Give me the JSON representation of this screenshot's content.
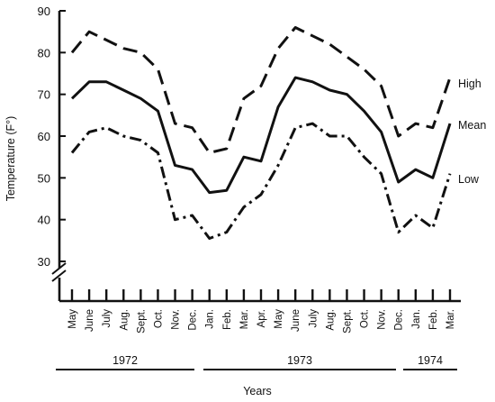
{
  "chart_data": {
    "type": "line",
    "ylabel": "Temperature (F°)",
    "xlabel": "Years",
    "ylim": [
      28,
      90
    ],
    "yticks": [
      30,
      40,
      50,
      60,
      70,
      80,
      90
    ],
    "categories": [
      "May",
      "June",
      "July",
      "Aug.",
      "Sept.",
      "Oct.",
      "Nov.",
      "Dec.",
      "Jan.",
      "Feb.",
      "Mar.",
      "Apr.",
      "May",
      "June",
      "July",
      "Aug.",
      "Sept.",
      "Oct.",
      "Nov.",
      "Dec.",
      "Jan.",
      "Feb.",
      "Mar."
    ],
    "year_groups": [
      {
        "label": "1972",
        "start": 0,
        "end": 7
      },
      {
        "label": "1973",
        "start": 8,
        "end": 19
      },
      {
        "label": "1974",
        "start": 20,
        "end": 22
      }
    ],
    "series": [
      {
        "name": "High",
        "style": "dashed",
        "values": [
          80,
          85,
          83,
          81,
          80,
          76,
          63,
          62,
          56,
          57,
          69,
          72,
          81,
          86,
          84,
          82,
          79,
          76,
          72,
          60,
          63,
          62,
          74
        ]
      },
      {
        "name": "Mean",
        "style": "solid",
        "values": [
          69,
          73,
          73,
          71,
          69,
          66,
          53,
          52,
          46.5,
          47,
          55,
          54,
          67,
          74,
          73,
          71,
          70,
          66,
          61,
          49,
          52,
          50,
          63
        ]
      },
      {
        "name": "Low",
        "style": "dash-dot",
        "values": [
          56,
          61,
          62,
          60,
          59,
          56,
          40,
          41,
          35.5,
          37,
          43,
          46,
          53,
          62,
          63,
          60,
          60,
          55,
          51,
          37,
          41,
          38,
          51
        ]
      }
    ],
    "grid": false,
    "legend": "right, next to line ends"
  }
}
